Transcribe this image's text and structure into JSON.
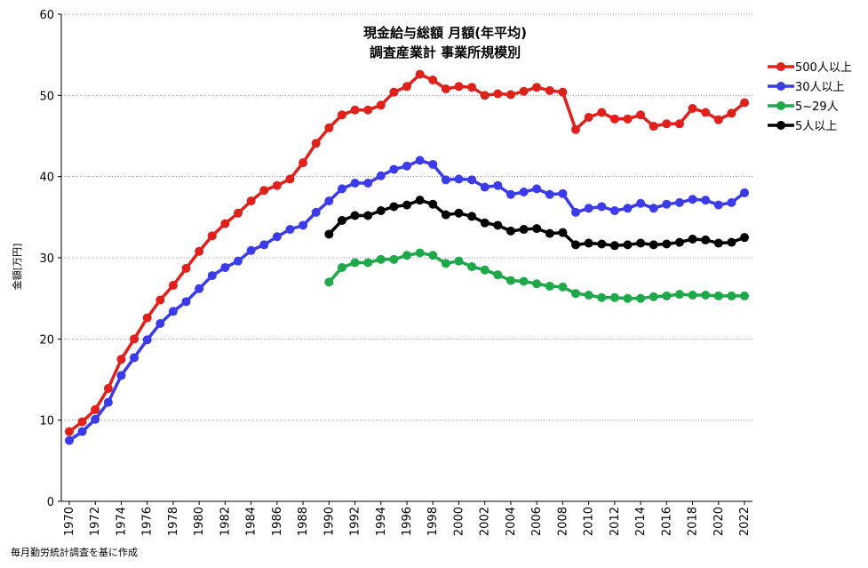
{
  "source_note": "毎月勤労統計調査を基に作成",
  "chart_data": {
    "type": "line",
    "title_lines": [
      "現金給与総額 月額(年平均)",
      "調査産業計 事業所規模別"
    ],
    "ylabel": "金額[万円]",
    "xlabel": "",
    "ylim": [
      0,
      60
    ],
    "yticks": [
      0,
      10,
      20,
      30,
      40,
      50,
      60
    ],
    "xlim": [
      1970,
      2022
    ],
    "xticks": [
      1970,
      1972,
      1974,
      1976,
      1978,
      1980,
      1982,
      1984,
      1986,
      1988,
      1990,
      1992,
      1994,
      1996,
      1998,
      2000,
      2002,
      2004,
      2006,
      2008,
      2010,
      2012,
      2014,
      2016,
      2018,
      2020,
      2022
    ],
    "grid": "horizontal dotted",
    "legend_position": "right",
    "series": [
      {
        "name": "500人以上",
        "color": "#e0201b",
        "x": [
          1970,
          1971,
          1972,
          1973,
          1974,
          1975,
          1976,
          1977,
          1978,
          1979,
          1980,
          1981,
          1982,
          1983,
          1984,
          1985,
          1986,
          1987,
          1988,
          1989,
          1990,
          1991,
          1992,
          1993,
          1994,
          1995,
          1996,
          1997,
          1998,
          1999,
          2000,
          2001,
          2002,
          2003,
          2004,
          2005,
          2006,
          2007,
          2008,
          2009,
          2010,
          2011,
          2012,
          2013,
          2014,
          2015,
          2016,
          2017,
          2018,
          2019,
          2020,
          2021,
          2022
        ],
        "values": [
          8.6,
          9.8,
          11.3,
          13.9,
          17.5,
          20.0,
          22.6,
          24.8,
          26.6,
          28.7,
          30.8,
          32.7,
          34.2,
          35.5,
          37.0,
          38.3,
          38.9,
          39.7,
          41.7,
          44.1,
          46.0,
          47.6,
          48.2,
          48.2,
          48.8,
          50.4,
          51.1,
          52.6,
          51.9,
          50.8,
          51.1,
          51.0,
          50.0,
          50.2,
          50.1,
          50.5,
          51.0,
          50.6,
          50.4,
          45.8,
          47.3,
          47.9,
          47.1,
          47.1,
          47.6,
          46.2,
          46.5,
          46.5,
          48.4,
          47.9,
          47.0,
          47.8,
          49.1
        ]
      },
      {
        "name": "30人以上",
        "color": "#3b3bea",
        "x": [
          1970,
          1971,
          1972,
          1973,
          1974,
          1975,
          1976,
          1977,
          1978,
          1979,
          1980,
          1981,
          1982,
          1983,
          1984,
          1985,
          1986,
          1987,
          1988,
          1989,
          1990,
          1991,
          1992,
          1993,
          1994,
          1995,
          1996,
          1997,
          1998,
          1999,
          2000,
          2001,
          2002,
          2003,
          2004,
          2005,
          2006,
          2007,
          2008,
          2009,
          2010,
          2011,
          2012,
          2013,
          2014,
          2015,
          2016,
          2017,
          2018,
          2019,
          2020,
          2021,
          2022
        ],
        "values": [
          7.5,
          8.6,
          10.1,
          12.2,
          15.5,
          17.7,
          19.9,
          21.9,
          23.4,
          24.6,
          26.2,
          27.8,
          28.8,
          29.6,
          30.9,
          31.6,
          32.6,
          33.5,
          34.0,
          35.6,
          37.0,
          38.5,
          39.2,
          39.2,
          40.1,
          40.9,
          41.3,
          42.0,
          41.5,
          39.6,
          39.7,
          39.6,
          38.7,
          38.9,
          37.8,
          38.1,
          38.5,
          37.8,
          37.9,
          35.6,
          36.1,
          36.3,
          35.8,
          36.1,
          36.7,
          36.1,
          36.6,
          36.8,
          37.2,
          37.1,
          36.5,
          36.8,
          38.0
        ]
      },
      {
        "name": "5~29人",
        "color": "#1fa84a",
        "x": [
          1990,
          1991,
          1992,
          1993,
          1994,
          1995,
          1996,
          1997,
          1998,
          1999,
          2000,
          2001,
          2002,
          2003,
          2004,
          2005,
          2006,
          2007,
          2008,
          2009,
          2010,
          2011,
          2012,
          2013,
          2014,
          2015,
          2016,
          2017,
          2018,
          2019,
          2020,
          2021,
          2022
        ],
        "values": [
          27.0,
          28.8,
          29.4,
          29.4,
          29.8,
          29.8,
          30.3,
          30.6,
          30.3,
          29.3,
          29.6,
          28.9,
          28.5,
          27.9,
          27.2,
          27.1,
          26.8,
          26.5,
          26.4,
          25.6,
          25.4,
          25.1,
          25.1,
          25.0,
          25.0,
          25.2,
          25.3,
          25.5,
          25.4,
          25.4,
          25.3,
          25.3,
          25.3
        ]
      },
      {
        "name": "5人以上",
        "color": "#000000",
        "x": [
          1990,
          1991,
          1992,
          1993,
          1994,
          1995,
          1996,
          1997,
          1998,
          1999,
          2000,
          2001,
          2002,
          2003,
          2004,
          2005,
          2006,
          2007,
          2008,
          2009,
          2010,
          2011,
          2012,
          2013,
          2014,
          2015,
          2016,
          2017,
          2018,
          2019,
          2020,
          2021,
          2022
        ],
        "values": [
          32.9,
          34.6,
          35.2,
          35.2,
          35.8,
          36.3,
          36.5,
          37.1,
          36.6,
          35.3,
          35.5,
          35.1,
          34.3,
          34.0,
          33.3,
          33.5,
          33.6,
          33.0,
          33.1,
          31.6,
          31.8,
          31.7,
          31.5,
          31.6,
          31.8,
          31.6,
          31.7,
          31.9,
          32.3,
          32.2,
          31.8,
          31.9,
          32.5
        ]
      }
    ]
  }
}
